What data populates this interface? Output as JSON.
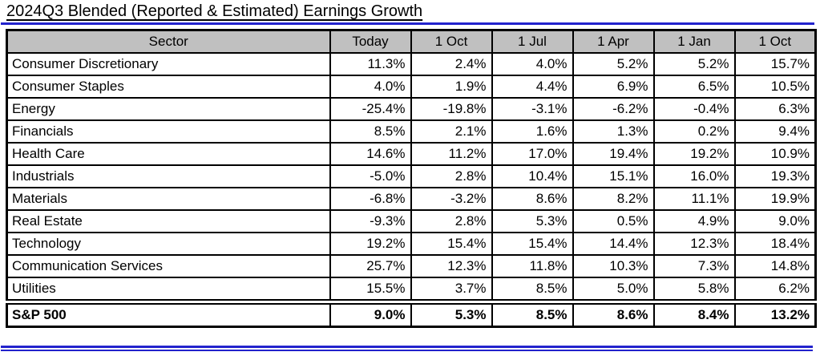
{
  "title": "2024Q3 Blended (Reported & Estimated) Earnings Growth",
  "colors": {
    "accent_blue": "#2222cc",
    "header_bg": "#c0c0c0",
    "border": "#000000",
    "text": "#000000",
    "background": "#ffffff"
  },
  "table": {
    "columns": [
      "Sector",
      "Today",
      "1 Oct",
      "1 Jul",
      "1 Apr",
      "1 Jan",
      "1 Oct"
    ],
    "rows": [
      {
        "sector": "Consumer Discretionary",
        "values": [
          "11.3%",
          "2.4%",
          "4.0%",
          "5.2%",
          "5.2%",
          "15.7%"
        ],
        "bold": false
      },
      {
        "sector": "Consumer Staples",
        "values": [
          "4.0%",
          "1.9%",
          "4.4%",
          "6.9%",
          "6.5%",
          "10.5%"
        ],
        "bold": false
      },
      {
        "sector": "Energy",
        "values": [
          "-25.4%",
          "-19.8%",
          "-3.1%",
          "-6.2%",
          "-0.4%",
          "6.3%"
        ],
        "bold": false
      },
      {
        "sector": "Financials",
        "values": [
          "8.5%",
          "2.1%",
          "1.6%",
          "1.3%",
          "0.2%",
          "9.4%"
        ],
        "bold": false
      },
      {
        "sector": "Health Care",
        "values": [
          "14.6%",
          "11.2%",
          "17.0%",
          "19.4%",
          "19.2%",
          "10.9%"
        ],
        "bold": false
      },
      {
        "sector": "Industrials",
        "values": [
          "-5.0%",
          "2.8%",
          "10.4%",
          "15.1%",
          "16.0%",
          "19.3%"
        ],
        "bold": false
      },
      {
        "sector": "Materials",
        "values": [
          "-6.8%",
          "-3.2%",
          "8.6%",
          "8.2%",
          "11.1%",
          "19.9%"
        ],
        "bold": false
      },
      {
        "sector": "Real Estate",
        "values": [
          "-9.3%",
          "2.8%",
          "5.3%",
          "0.5%",
          "4.9%",
          "9.0%"
        ],
        "bold": false
      },
      {
        "sector": "Technology",
        "values": [
          "19.2%",
          "15.4%",
          "15.4%",
          "14.4%",
          "12.3%",
          "18.4%"
        ],
        "bold": false
      },
      {
        "sector": "Communication Services",
        "values": [
          "25.7%",
          "12.3%",
          "11.8%",
          "10.3%",
          "7.3%",
          "14.8%"
        ],
        "bold": false
      },
      {
        "sector": "Utilities",
        "values": [
          "15.5%",
          "3.7%",
          "8.5%",
          "5.0%",
          "5.8%",
          "6.2%"
        ],
        "bold": false
      },
      {
        "sector": "S&P 500",
        "values": [
          "9.0%",
          "5.3%",
          "8.5%",
          "8.6%",
          "8.4%",
          "13.2%"
        ],
        "bold": true
      }
    ]
  },
  "chart_data": {
    "type": "table",
    "title": "2024Q3 Blended (Reported & Estimated) Earnings Growth",
    "units": "percent",
    "columns": [
      "Sector",
      "Today",
      "1 Oct",
      "1 Jul",
      "1 Apr",
      "1 Jan",
      "1 Oct"
    ],
    "rows": [
      [
        "Consumer Discretionary",
        11.3,
        2.4,
        4.0,
        5.2,
        5.2,
        15.7
      ],
      [
        "Consumer Staples",
        4.0,
        1.9,
        4.4,
        6.9,
        6.5,
        10.5
      ],
      [
        "Energy",
        -25.4,
        -19.8,
        -3.1,
        -6.2,
        -0.4,
        6.3
      ],
      [
        "Financials",
        8.5,
        2.1,
        1.6,
        1.3,
        0.2,
        9.4
      ],
      [
        "Health Care",
        14.6,
        11.2,
        17.0,
        19.4,
        19.2,
        10.9
      ],
      [
        "Industrials",
        -5.0,
        2.8,
        10.4,
        15.1,
        16.0,
        19.3
      ],
      [
        "Materials",
        -6.8,
        -3.2,
        8.6,
        8.2,
        11.1,
        19.9
      ],
      [
        "Real Estate",
        -9.3,
        2.8,
        5.3,
        0.5,
        4.9,
        9.0
      ],
      [
        "Technology",
        19.2,
        15.4,
        15.4,
        14.4,
        12.3,
        18.4
      ],
      [
        "Communication Services",
        25.7,
        12.3,
        11.8,
        10.3,
        7.3,
        14.8
      ],
      [
        "Utilities",
        15.5,
        3.7,
        8.5,
        5.0,
        5.8,
        6.2
      ],
      [
        "S&P 500",
        9.0,
        5.3,
        8.5,
        8.6,
        8.4,
        13.2
      ]
    ]
  }
}
